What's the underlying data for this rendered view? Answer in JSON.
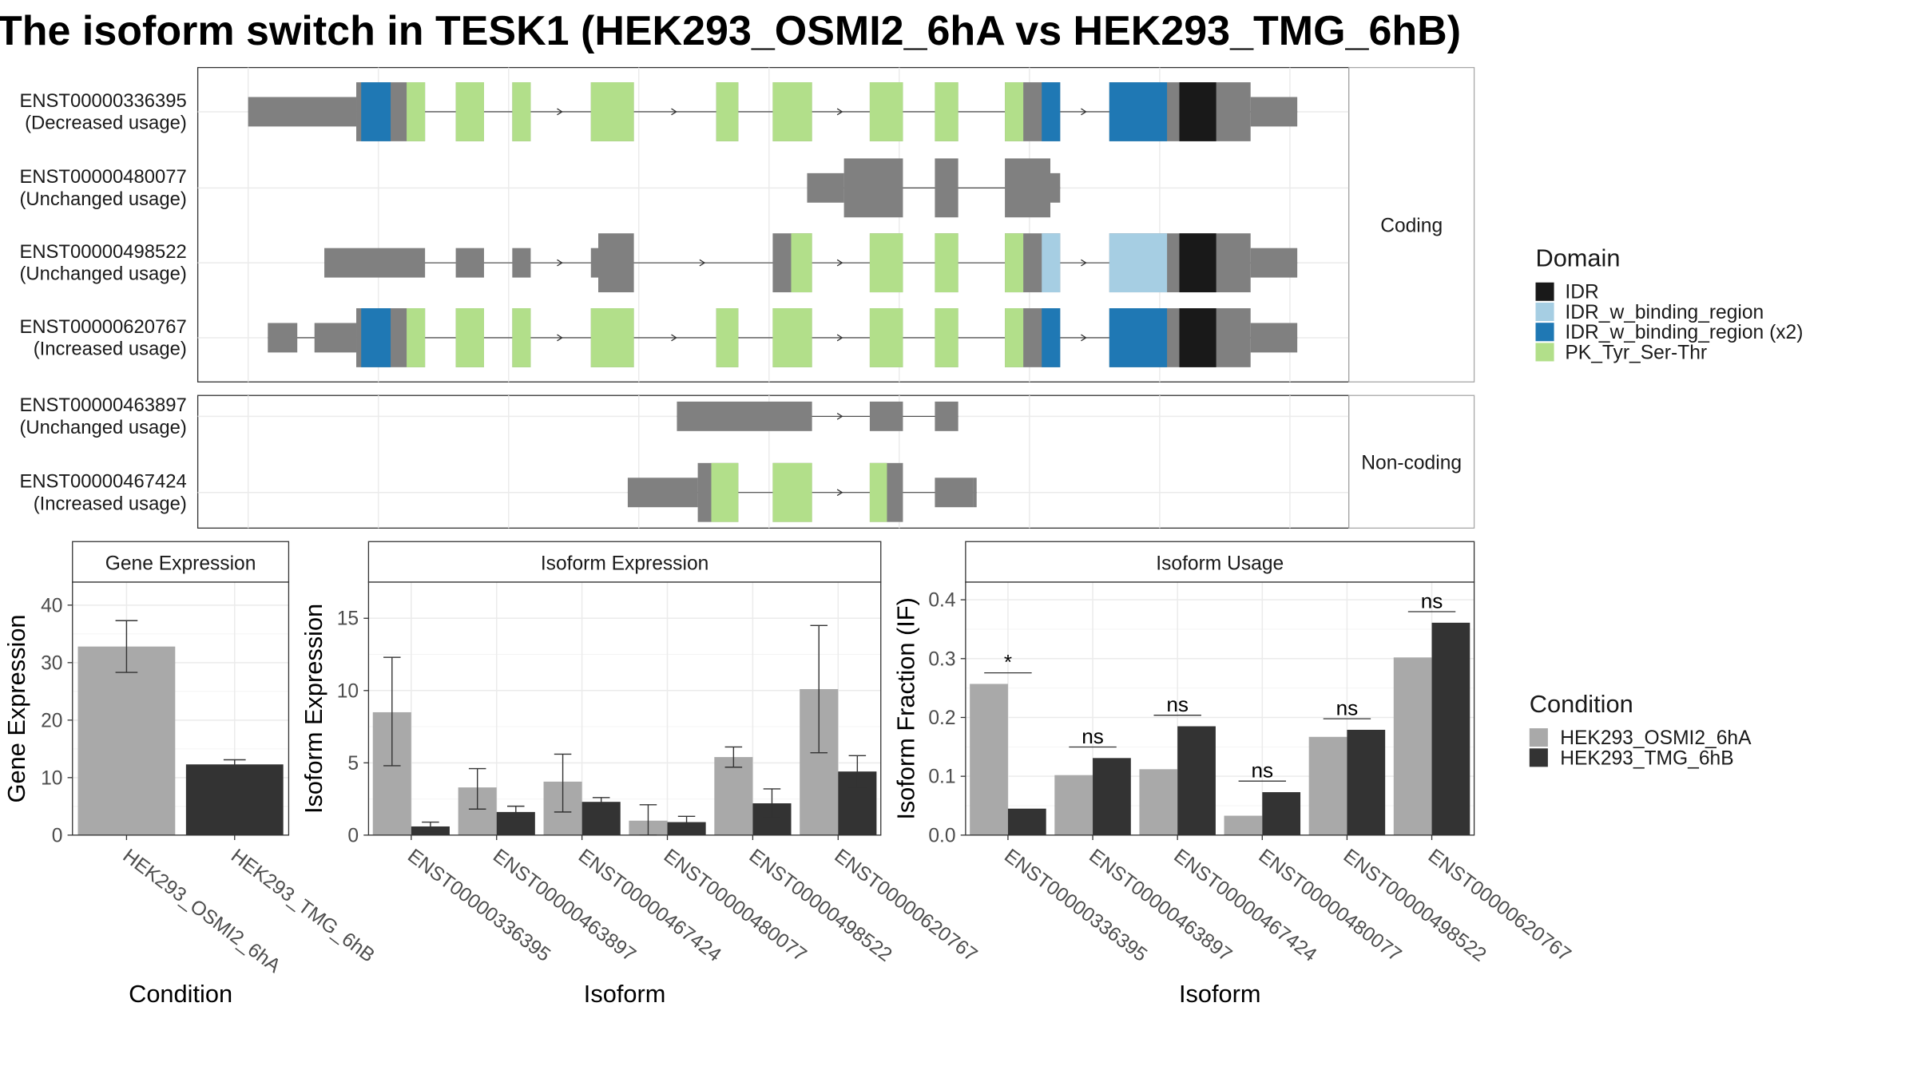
{
  "title": "The isoform switch in TESK1 (HEK293_OSMI2_6hA vs HEK293_TMG_6hB)",
  "colors": {
    "cds": "#808080",
    "IDR": "#191919",
    "IDR_w_binding_region": "#a6cee3",
    "IDR_w_binding_region (x2)": "#1f78b4",
    "PK_Tyr_Ser-Thr": "#b2df8a",
    "condA": "#a9a9a9",
    "condB": "#333333"
  },
  "structure": {
    "coding_label": "Coding",
    "noncoding_label": "Non-coding",
    "coding": [
      {
        "id": "ENST00000336395",
        "usage": "(Decreased usage)",
        "blocks": [
          [
            202,
            290,
            "u"
          ],
          [
            290,
            828,
            "c"
          ],
          [
            833,
            1058,
            "c"
          ],
          [
            833,
            1058,
            "c"
          ]
        ],
        "exons": [
          [
            202,
            290,
            "u"
          ],
          [
            290,
            346,
            "c"
          ],
          [
            371,
            394,
            "c"
          ],
          [
            417,
            432,
            "c"
          ],
          [
            481,
            516,
            "c"
          ],
          [
            583,
            601,
            "c"
          ],
          [
            629,
            661,
            "c"
          ],
          [
            708,
            735,
            "c"
          ],
          [
            761,
            780,
            "c"
          ],
          [
            818,
            863,
            "c"
          ],
          [
            903,
            1018,
            "c"
          ],
          [
            1018,
            1056,
            "u"
          ]
        ],
        "domains": [
          [
            294,
            318,
            "IDR_w_binding_region (x2)"
          ],
          [
            331,
            346,
            "PK_Tyr_Ser-Thr"
          ],
          [
            371,
            394,
            "PK_Tyr_Ser-Thr"
          ],
          [
            417,
            432,
            "PK_Tyr_Ser-Thr"
          ],
          [
            481,
            516,
            "PK_Tyr_Ser-Thr"
          ],
          [
            583,
            601,
            "PK_Tyr_Ser-Thr"
          ],
          [
            629,
            661,
            "PK_Tyr_Ser-Thr"
          ],
          [
            708,
            735,
            "PK_Tyr_Ser-Thr"
          ],
          [
            761,
            780,
            "PK_Tyr_Ser-Thr"
          ],
          [
            818,
            833,
            "PK_Tyr_Ser-Thr"
          ],
          [
            848,
            863,
            "IDR_w_binding_region (x2)"
          ],
          [
            903,
            950,
            "IDR_w_binding_region (x2)"
          ],
          [
            960,
            990,
            "IDR"
          ]
        ]
      },
      {
        "id": "ENST00000480077",
        "usage": "(Unchanged usage)",
        "exons": [
          [
            657,
            687,
            "u"
          ],
          [
            687,
            735,
            "c"
          ],
          [
            761,
            780,
            "c"
          ],
          [
            818,
            855,
            "c"
          ],
          [
            855,
            863,
            "u"
          ]
        ],
        "domains": []
      },
      {
        "id": "ENST00000498522",
        "usage": "(Unchanged usage)",
        "exons": [
          [
            264,
            346,
            "u"
          ],
          [
            371,
            394,
            "u"
          ],
          [
            417,
            432,
            "u"
          ],
          [
            481,
            487,
            "u"
          ],
          [
            487,
            516,
            "c"
          ],
          [
            629,
            661,
            "c"
          ],
          [
            708,
            735,
            "c"
          ],
          [
            761,
            780,
            "c"
          ],
          [
            818,
            863,
            "c"
          ],
          [
            903,
            1018,
            "c"
          ],
          [
            1018,
            1056,
            "u"
          ]
        ],
        "domains": [
          [
            644,
            661,
            "PK_Tyr_Ser-Thr"
          ],
          [
            708,
            735,
            "PK_Tyr_Ser-Thr"
          ],
          [
            761,
            780,
            "PK_Tyr_Ser-Thr"
          ],
          [
            818,
            833,
            "PK_Tyr_Ser-Thr"
          ],
          [
            848,
            863,
            "IDR_w_binding_region"
          ],
          [
            903,
            950,
            "IDR_w_binding_region"
          ],
          [
            960,
            990,
            "IDR"
          ]
        ]
      },
      {
        "id": "ENST00000620767",
        "usage": "(Increased usage)",
        "exons": [
          [
            218,
            242,
            "u"
          ],
          [
            256,
            290,
            "u"
          ],
          [
            290,
            346,
            "c"
          ],
          [
            371,
            394,
            "c"
          ],
          [
            417,
            432,
            "c"
          ],
          [
            481,
            516,
            "c"
          ],
          [
            583,
            601,
            "c"
          ],
          [
            629,
            661,
            "c"
          ],
          [
            708,
            735,
            "c"
          ],
          [
            761,
            780,
            "c"
          ],
          [
            818,
            863,
            "c"
          ],
          [
            903,
            1018,
            "c"
          ],
          [
            1018,
            1056,
            "u"
          ]
        ],
        "domains": [
          [
            294,
            318,
            "IDR_w_binding_region (x2)"
          ],
          [
            331,
            346,
            "PK_Tyr_Ser-Thr"
          ],
          [
            371,
            394,
            "PK_Tyr_Ser-Thr"
          ],
          [
            417,
            432,
            "PK_Tyr_Ser-Thr"
          ],
          [
            481,
            516,
            "PK_Tyr_Ser-Thr"
          ],
          [
            583,
            601,
            "PK_Tyr_Ser-Thr"
          ],
          [
            629,
            661,
            "PK_Tyr_Ser-Thr"
          ],
          [
            708,
            735,
            "PK_Tyr_Ser-Thr"
          ],
          [
            761,
            780,
            "PK_Tyr_Ser-Thr"
          ],
          [
            818,
            833,
            "PK_Tyr_Ser-Thr"
          ],
          [
            848,
            863,
            "IDR_w_binding_region (x2)"
          ],
          [
            903,
            950,
            "IDR_w_binding_region (x2)"
          ],
          [
            960,
            990,
            "IDR"
          ]
        ]
      }
    ],
    "noncoding": [
      {
        "id": "ENST00000463897",
        "usage": "(Unchanged usage)",
        "exons": [
          [
            551,
            661,
            "u"
          ],
          [
            708,
            735,
            "u"
          ],
          [
            761,
            780,
            "u"
          ]
        ],
        "domains": []
      },
      {
        "id": "ENST00000467424",
        "usage": "(Increased usage)",
        "exons": [
          [
            511,
            568,
            "u"
          ],
          [
            568,
            601,
            "c"
          ],
          [
            629,
            661,
            "c"
          ],
          [
            708,
            735,
            "c"
          ],
          [
            761,
            792,
            "u"
          ],
          [
            792,
            795,
            "u"
          ]
        ],
        "domains": [
          [
            579,
            601,
            "PK_Tyr_Ser-Thr"
          ],
          [
            629,
            661,
            "PK_Tyr_Ser-Thr"
          ],
          [
            708,
            722,
            "PK_Tyr_Ser-Thr"
          ]
        ]
      }
    ]
  },
  "domain_legend": {
    "title": "Domain",
    "items": [
      "IDR",
      "IDR_w_binding_region",
      "IDR_w_binding_region (x2)",
      "PK_Tyr_Ser-Thr"
    ]
  },
  "condition_legend": {
    "title": "Condition",
    "items": [
      "HEK293_OSMI2_6hA",
      "HEK293_TMG_6hB"
    ]
  },
  "chart_data": [
    {
      "type": "bar",
      "title": "Gene Expression",
      "xlabel": "Condition",
      "ylabel": "Gene Expression",
      "ylim": [
        0,
        44
      ],
      "yticks": [
        0,
        10,
        20,
        30,
        40
      ],
      "categories": [
        "HEK293_OSMI2_6hA",
        "HEK293_TMG_6hB"
      ],
      "values": [
        32.8,
        12.3
      ],
      "errors": [
        [
          28.3,
          37.3
        ],
        [
          11.5,
          13.1
        ]
      ]
    },
    {
      "type": "bar",
      "title": "Isoform Expression",
      "xlabel": "Isoform",
      "ylabel": "Isoform Expression",
      "ylim": [
        0,
        17.5
      ],
      "yticks": [
        0,
        5,
        10,
        15
      ],
      "categories": [
        "ENST00000336395",
        "ENST00000463897",
        "ENST00000467424",
        "ENST00000480077",
        "ENST00000498522",
        "ENST00000620767"
      ],
      "series": [
        {
          "name": "HEK293_OSMI2_6hA",
          "values": [
            8.5,
            3.3,
            3.7,
            1.0,
            5.4,
            10.1
          ],
          "errors": [
            [
              4.8,
              12.3
            ],
            [
              1.8,
              4.6
            ],
            [
              1.6,
              5.6
            ],
            [
              0,
              2.1
            ],
            [
              4.7,
              6.1
            ],
            [
              5.7,
              14.5
            ]
          ]
        },
        {
          "name": "HEK293_TMG_6hB",
          "values": [
            0.6,
            1.6,
            2.3,
            0.9,
            2.2,
            4.4
          ],
          "errors": [
            [
              0.3,
              0.9
            ],
            [
              1.2,
              2.0
            ],
            [
              2.1,
              2.6
            ],
            [
              0.5,
              1.3
            ],
            [
              1.2,
              3.2
            ],
            [
              3.3,
              5.5
            ]
          ]
        }
      ]
    },
    {
      "type": "bar",
      "title": "Isoform Usage",
      "xlabel": "Isoform",
      "ylabel": "Isoform Fraction (IF)",
      "ylim": [
        0,
        0.43
      ],
      "yticks": [
        "0.0",
        "0.1",
        "0.2",
        "0.3",
        "0.4"
      ],
      "categories": [
        "ENST00000336395",
        "ENST00000463897",
        "ENST00000467424",
        "ENST00000480077",
        "ENST00000498522",
        "ENST00000620767"
      ],
      "series": [
        {
          "name": "HEK293_OSMI2_6hA",
          "values": [
            0.257,
            0.102,
            0.112,
            0.033,
            0.167,
            0.302
          ]
        },
        {
          "name": "HEK293_TMG_6hB",
          "values": [
            0.045,
            0.131,
            0.185,
            0.073,
            0.179,
            0.361
          ]
        }
      ],
      "significance": [
        "*",
        "ns",
        "ns",
        "ns",
        "ns",
        "ns"
      ]
    }
  ]
}
